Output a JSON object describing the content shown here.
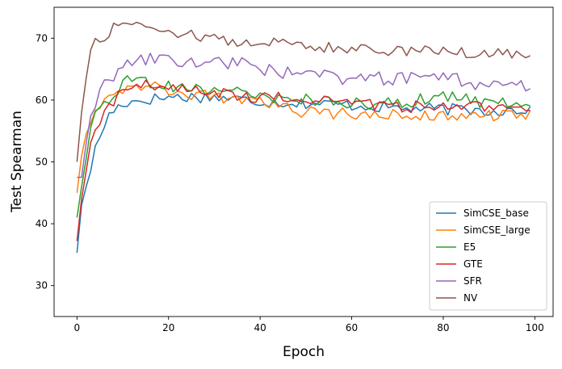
{
  "chart_data": {
    "type": "line",
    "xlabel": "Epoch",
    "ylabel": "Test Spearman",
    "xlim": [
      -5,
      104
    ],
    "ylim": [
      25,
      75
    ],
    "xticks": [
      0,
      20,
      40,
      60,
      80,
      100
    ],
    "yticks": [
      30,
      40,
      50,
      60,
      70
    ],
    "grid": false,
    "legend_position": "bottom-right",
    "series": [
      {
        "name": "SimCSE_base",
        "color": "#1f77b4",
        "anchors": [
          [
            0,
            35.3
          ],
          [
            1,
            43.0
          ],
          [
            2,
            46.0
          ],
          [
            3,
            49.0
          ],
          [
            4,
            52.0
          ],
          [
            5,
            54.0
          ],
          [
            6,
            56.0
          ],
          [
            7,
            57.5
          ],
          [
            8,
            58.3
          ],
          [
            10,
            59.5
          ],
          [
            14,
            60.0
          ],
          [
            20,
            60.5
          ],
          [
            30,
            60.5
          ],
          [
            40,
            59.8
          ],
          [
            50,
            59.5
          ],
          [
            60,
            59.2
          ],
          [
            70,
            58.7
          ],
          [
            80,
            58.5
          ],
          [
            90,
            58.3
          ],
          [
            99,
            58.5
          ]
        ],
        "noise": 0.6
      },
      {
        "name": "SimCSE_large",
        "color": "#ff7f0e",
        "anchors": [
          [
            0,
            45.0
          ],
          [
            1,
            51.0
          ],
          [
            2,
            54.5
          ],
          [
            3,
            57.0
          ],
          [
            4,
            58.5
          ],
          [
            5,
            59.5
          ],
          [
            7,
            61.0
          ],
          [
            10,
            62.0
          ],
          [
            14,
            62.5
          ],
          [
            20,
            61.5
          ],
          [
            30,
            60.5
          ],
          [
            40,
            59.5
          ],
          [
            50,
            58.0
          ],
          [
            60,
            57.8
          ],
          [
            70,
            57.5
          ],
          [
            80,
            57.5
          ],
          [
            90,
            57.5
          ],
          [
            99,
            57.5
          ]
        ],
        "noise": 0.6
      },
      {
        "name": "E5",
        "color": "#2ca02c",
        "anchors": [
          [
            0,
            41.0
          ],
          [
            1,
            46.0
          ],
          [
            2,
            50.5
          ],
          [
            3,
            54.5
          ],
          [
            4,
            57.0
          ],
          [
            5,
            58.5
          ],
          [
            7,
            60.5
          ],
          [
            10,
            62.5
          ],
          [
            13,
            63.5
          ],
          [
            20,
            62.5
          ],
          [
            30,
            61.5
          ],
          [
            40,
            60.5
          ],
          [
            50,
            60.0
          ],
          [
            60,
            59.5
          ],
          [
            70,
            59.5
          ],
          [
            80,
            60.5
          ],
          [
            90,
            59.5
          ],
          [
            99,
            60.0
          ]
        ],
        "noise": 0.7
      },
      {
        "name": "GTE",
        "color": "#d62728",
        "anchors": [
          [
            0,
            37.2
          ],
          [
            1,
            44.0
          ],
          [
            2,
            48.5
          ],
          [
            3,
            52.5
          ],
          [
            4,
            55.0
          ],
          [
            5,
            56.5
          ],
          [
            7,
            59.0
          ],
          [
            10,
            61.5
          ],
          [
            13,
            62.5
          ],
          [
            20,
            62.0
          ],
          [
            30,
            61.0
          ],
          [
            40,
            60.5
          ],
          [
            50,
            60.0
          ],
          [
            60,
            59.5
          ],
          [
            70,
            59.0
          ],
          [
            80,
            58.8
          ],
          [
            90,
            59.0
          ],
          [
            99,
            58.8
          ]
        ],
        "noise": 0.6
      },
      {
        "name": "SFR",
        "color": "#9467bd",
        "anchors": [
          [
            0,
            47.5
          ],
          [
            1,
            47.5
          ],
          [
            2,
            53.0
          ],
          [
            3,
            57.0
          ],
          [
            4,
            59.5
          ],
          [
            5,
            61.0
          ],
          [
            7,
            63.5
          ],
          [
            10,
            65.5
          ],
          [
            13,
            66.3
          ],
          [
            16,
            66.5
          ],
          [
            20,
            66.2
          ],
          [
            25,
            66.3
          ],
          [
            30,
            66.0
          ],
          [
            35,
            66.2
          ],
          [
            40,
            65.0
          ],
          [
            45,
            64.5
          ],
          [
            50,
            64.0
          ],
          [
            60,
            63.5
          ],
          [
            70,
            63.5
          ],
          [
            80,
            63.5
          ],
          [
            85,
            63.0
          ],
          [
            90,
            62.5
          ],
          [
            99,
            62.0
          ]
        ],
        "noise": 0.7
      },
      {
        "name": "NV",
        "color": "#8c564b",
        "anchors": [
          [
            0,
            50.0
          ],
          [
            1,
            58.0
          ],
          [
            2,
            63.5
          ],
          [
            3,
            68.0
          ],
          [
            4,
            69.5
          ],
          [
            5,
            69.5
          ],
          [
            7,
            71.0
          ],
          [
            10,
            73.0
          ],
          [
            13,
            72.5
          ],
          [
            15,
            72.0
          ],
          [
            20,
            71.2
          ],
          [
            25,
            70.5
          ],
          [
            30,
            70.0
          ],
          [
            35,
            69.0
          ],
          [
            40,
            69.5
          ],
          [
            45,
            69.3
          ],
          [
            50,
            68.8
          ],
          [
            60,
            68.3
          ],
          [
            70,
            68.0
          ],
          [
            80,
            67.8
          ],
          [
            90,
            67.6
          ],
          [
            97,
            67.5
          ],
          [
            99,
            67.0
          ]
        ],
        "noise": 0.55
      }
    ]
  }
}
